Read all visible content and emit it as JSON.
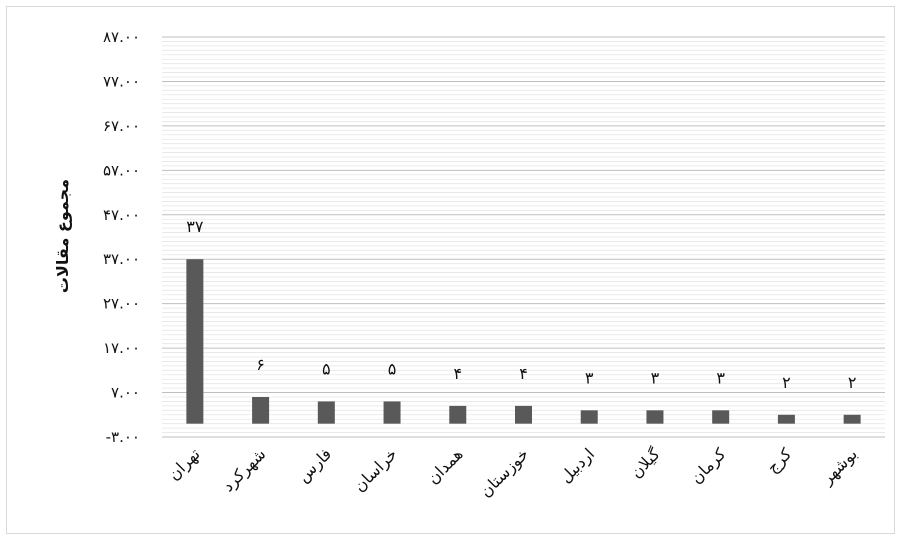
{
  "chart_data": {
    "type": "bar",
    "title": "",
    "xlabel": "",
    "ylabel": "مجموع مقالات",
    "ylim": [
      -3,
      87
    ],
    "ytick_values": [
      -3,
      7,
      17,
      27,
      37,
      47,
      57,
      67,
      77,
      87
    ],
    "ytick_labels": [
      "-۳.۰۰",
      "۷.۰۰",
      "۱۷.۰۰",
      "۲۷.۰۰",
      "۳۷.۰۰",
      "۴۷.۰۰",
      "۵۷.۰۰",
      "۶۷.۰۰",
      "۷۷.۰۰",
      "۸۷.۰۰"
    ],
    "categories": [
      "تهران",
      "شهرکرد",
      "فارس",
      "خراسان",
      "همدان",
      "خوزستان",
      "اردبیل",
      "گیلان",
      "کرمان",
      "کرج",
      "بوشهر"
    ],
    "values": [
      37,
      6,
      5,
      5,
      4,
      4,
      3,
      3,
      3,
      2,
      2
    ],
    "data_labels": [
      "۳۷",
      "۶",
      "۵",
      "۵",
      "۴",
      "۴",
      "۳",
      "۳",
      "۳",
      "۲",
      "۲"
    ],
    "grid": true,
    "bar_color": "#595959",
    "grid_color": "#d9d9d9",
    "legend": "none"
  }
}
